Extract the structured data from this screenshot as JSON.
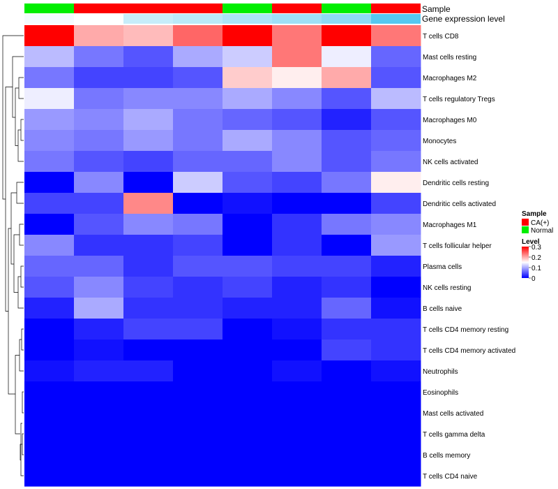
{
  "chart_data": {
    "type": "heatmap",
    "annotation_labels": [
      "Sample",
      "Gene expression level"
    ],
    "columns": [
      {
        "sample": "Normal",
        "level": 0.02
      },
      {
        "sample": "CA(+)",
        "level": 0.0
      },
      {
        "sample": "CA(+)",
        "level": 0.1
      },
      {
        "sample": "CA(+)",
        "level": 0.12
      },
      {
        "sample": "Normal",
        "level": 0.15
      },
      {
        "sample": "CA(+)",
        "level": 0.17
      },
      {
        "sample": "Normal",
        "level": 0.2
      },
      {
        "sample": "CA(+)",
        "level": 0.3
      }
    ],
    "rows": [
      {
        "name": "T cells CD8",
        "values": [
          0.3,
          0.2,
          0.19,
          0.24,
          0.3,
          0.23,
          0.3,
          0.23
        ]
      },
      {
        "name": "Mast cells resting",
        "values": [
          0.11,
          0.07,
          0.05,
          0.1,
          0.12,
          0.23,
          0.14,
          0.06
        ]
      },
      {
        "name": "Macrophages M2",
        "values": [
          0.07,
          0.04,
          0.04,
          0.05,
          0.18,
          0.16,
          0.2,
          0.05
        ]
      },
      {
        "name": "T cells regulatory  Tregs",
        "values": [
          0.14,
          0.07,
          0.08,
          0.08,
          0.1,
          0.08,
          0.05,
          0.11
        ]
      },
      {
        "name": "Macrophages M0",
        "values": [
          0.09,
          0.08,
          0.1,
          0.07,
          0.06,
          0.05,
          0.02,
          0.05
        ]
      },
      {
        "name": "Monocytes",
        "values": [
          0.08,
          0.07,
          0.09,
          0.07,
          0.1,
          0.08,
          0.05,
          0.06
        ]
      },
      {
        "name": "NK cells activated",
        "values": [
          0.07,
          0.05,
          0.04,
          0.06,
          0.06,
          0.08,
          0.05,
          0.07
        ]
      },
      {
        "name": "Dendritic cells resting",
        "values": [
          0.0,
          0.08,
          0.0,
          0.12,
          0.05,
          0.04,
          0.07,
          0.16
        ]
      },
      {
        "name": "Dendritic cells activated",
        "values": [
          0.04,
          0.04,
          0.22,
          0.0,
          0.01,
          0.0,
          0.0,
          0.04
        ]
      },
      {
        "name": "Macrophages M1",
        "values": [
          0.0,
          0.05,
          0.08,
          0.07,
          0.0,
          0.03,
          0.07,
          0.08
        ]
      },
      {
        "name": "T cells follicular helper",
        "values": [
          0.08,
          0.03,
          0.03,
          0.04,
          0.0,
          0.03,
          0.0,
          0.09
        ]
      },
      {
        "name": "Plasma cells",
        "values": [
          0.06,
          0.06,
          0.03,
          0.05,
          0.05,
          0.04,
          0.04,
          0.02
        ]
      },
      {
        "name": "NK cells resting",
        "values": [
          0.05,
          0.08,
          0.04,
          0.03,
          0.04,
          0.02,
          0.03,
          0.0
        ]
      },
      {
        "name": "B cells naive",
        "values": [
          0.02,
          0.1,
          0.03,
          0.03,
          0.02,
          0.02,
          0.06,
          0.01
        ]
      },
      {
        "name": "T cells CD4 memory resting",
        "values": [
          0.0,
          0.02,
          0.04,
          0.04,
          0.0,
          0.01,
          0.03,
          0.03
        ]
      },
      {
        "name": "T cells CD4 memory activated",
        "values": [
          0.0,
          0.01,
          0.0,
          0.0,
          0.0,
          0.0,
          0.04,
          0.03
        ]
      },
      {
        "name": "Neutrophils",
        "values": [
          0.01,
          0.02,
          0.02,
          0.0,
          0.0,
          0.01,
          0.0,
          0.01
        ]
      },
      {
        "name": "Eosinophils",
        "values": [
          0,
          0,
          0,
          0,
          0,
          0,
          0,
          0
        ]
      },
      {
        "name": "Mast cells activated",
        "values": [
          0,
          0,
          0,
          0,
          0,
          0,
          0,
          0
        ]
      },
      {
        "name": "T cells gamma delta",
        "values": [
          0,
          0,
          0,
          0,
          0,
          0,
          0,
          0
        ]
      },
      {
        "name": "B cells memory",
        "values": [
          0,
          0,
          0,
          0,
          0,
          0,
          0,
          0
        ]
      },
      {
        "name": "T cells CD4 naive",
        "values": [
          0,
          0,
          0,
          0,
          0,
          0,
          0,
          0
        ]
      }
    ],
    "color_scale": {
      "min": 0,
      "max": 0.3,
      "colors": [
        "#0000ff",
        "#ffffff",
        "#ff0000"
      ]
    },
    "level_scale": {
      "min": 0,
      "max": 0.3,
      "colors": [
        "#ffffff",
        "#56c8f0"
      ]
    },
    "legend": {
      "sample_title": "Sample",
      "sample_entries": [
        {
          "label": "CA(+)",
          "color": "#ff0000"
        },
        {
          "label": "Normal",
          "color": "#00ee00"
        }
      ],
      "level_title": "Level",
      "level_ticks": [
        "0.3",
        "0.2",
        "0.1",
        "0"
      ],
      "placement": "right"
    }
  }
}
